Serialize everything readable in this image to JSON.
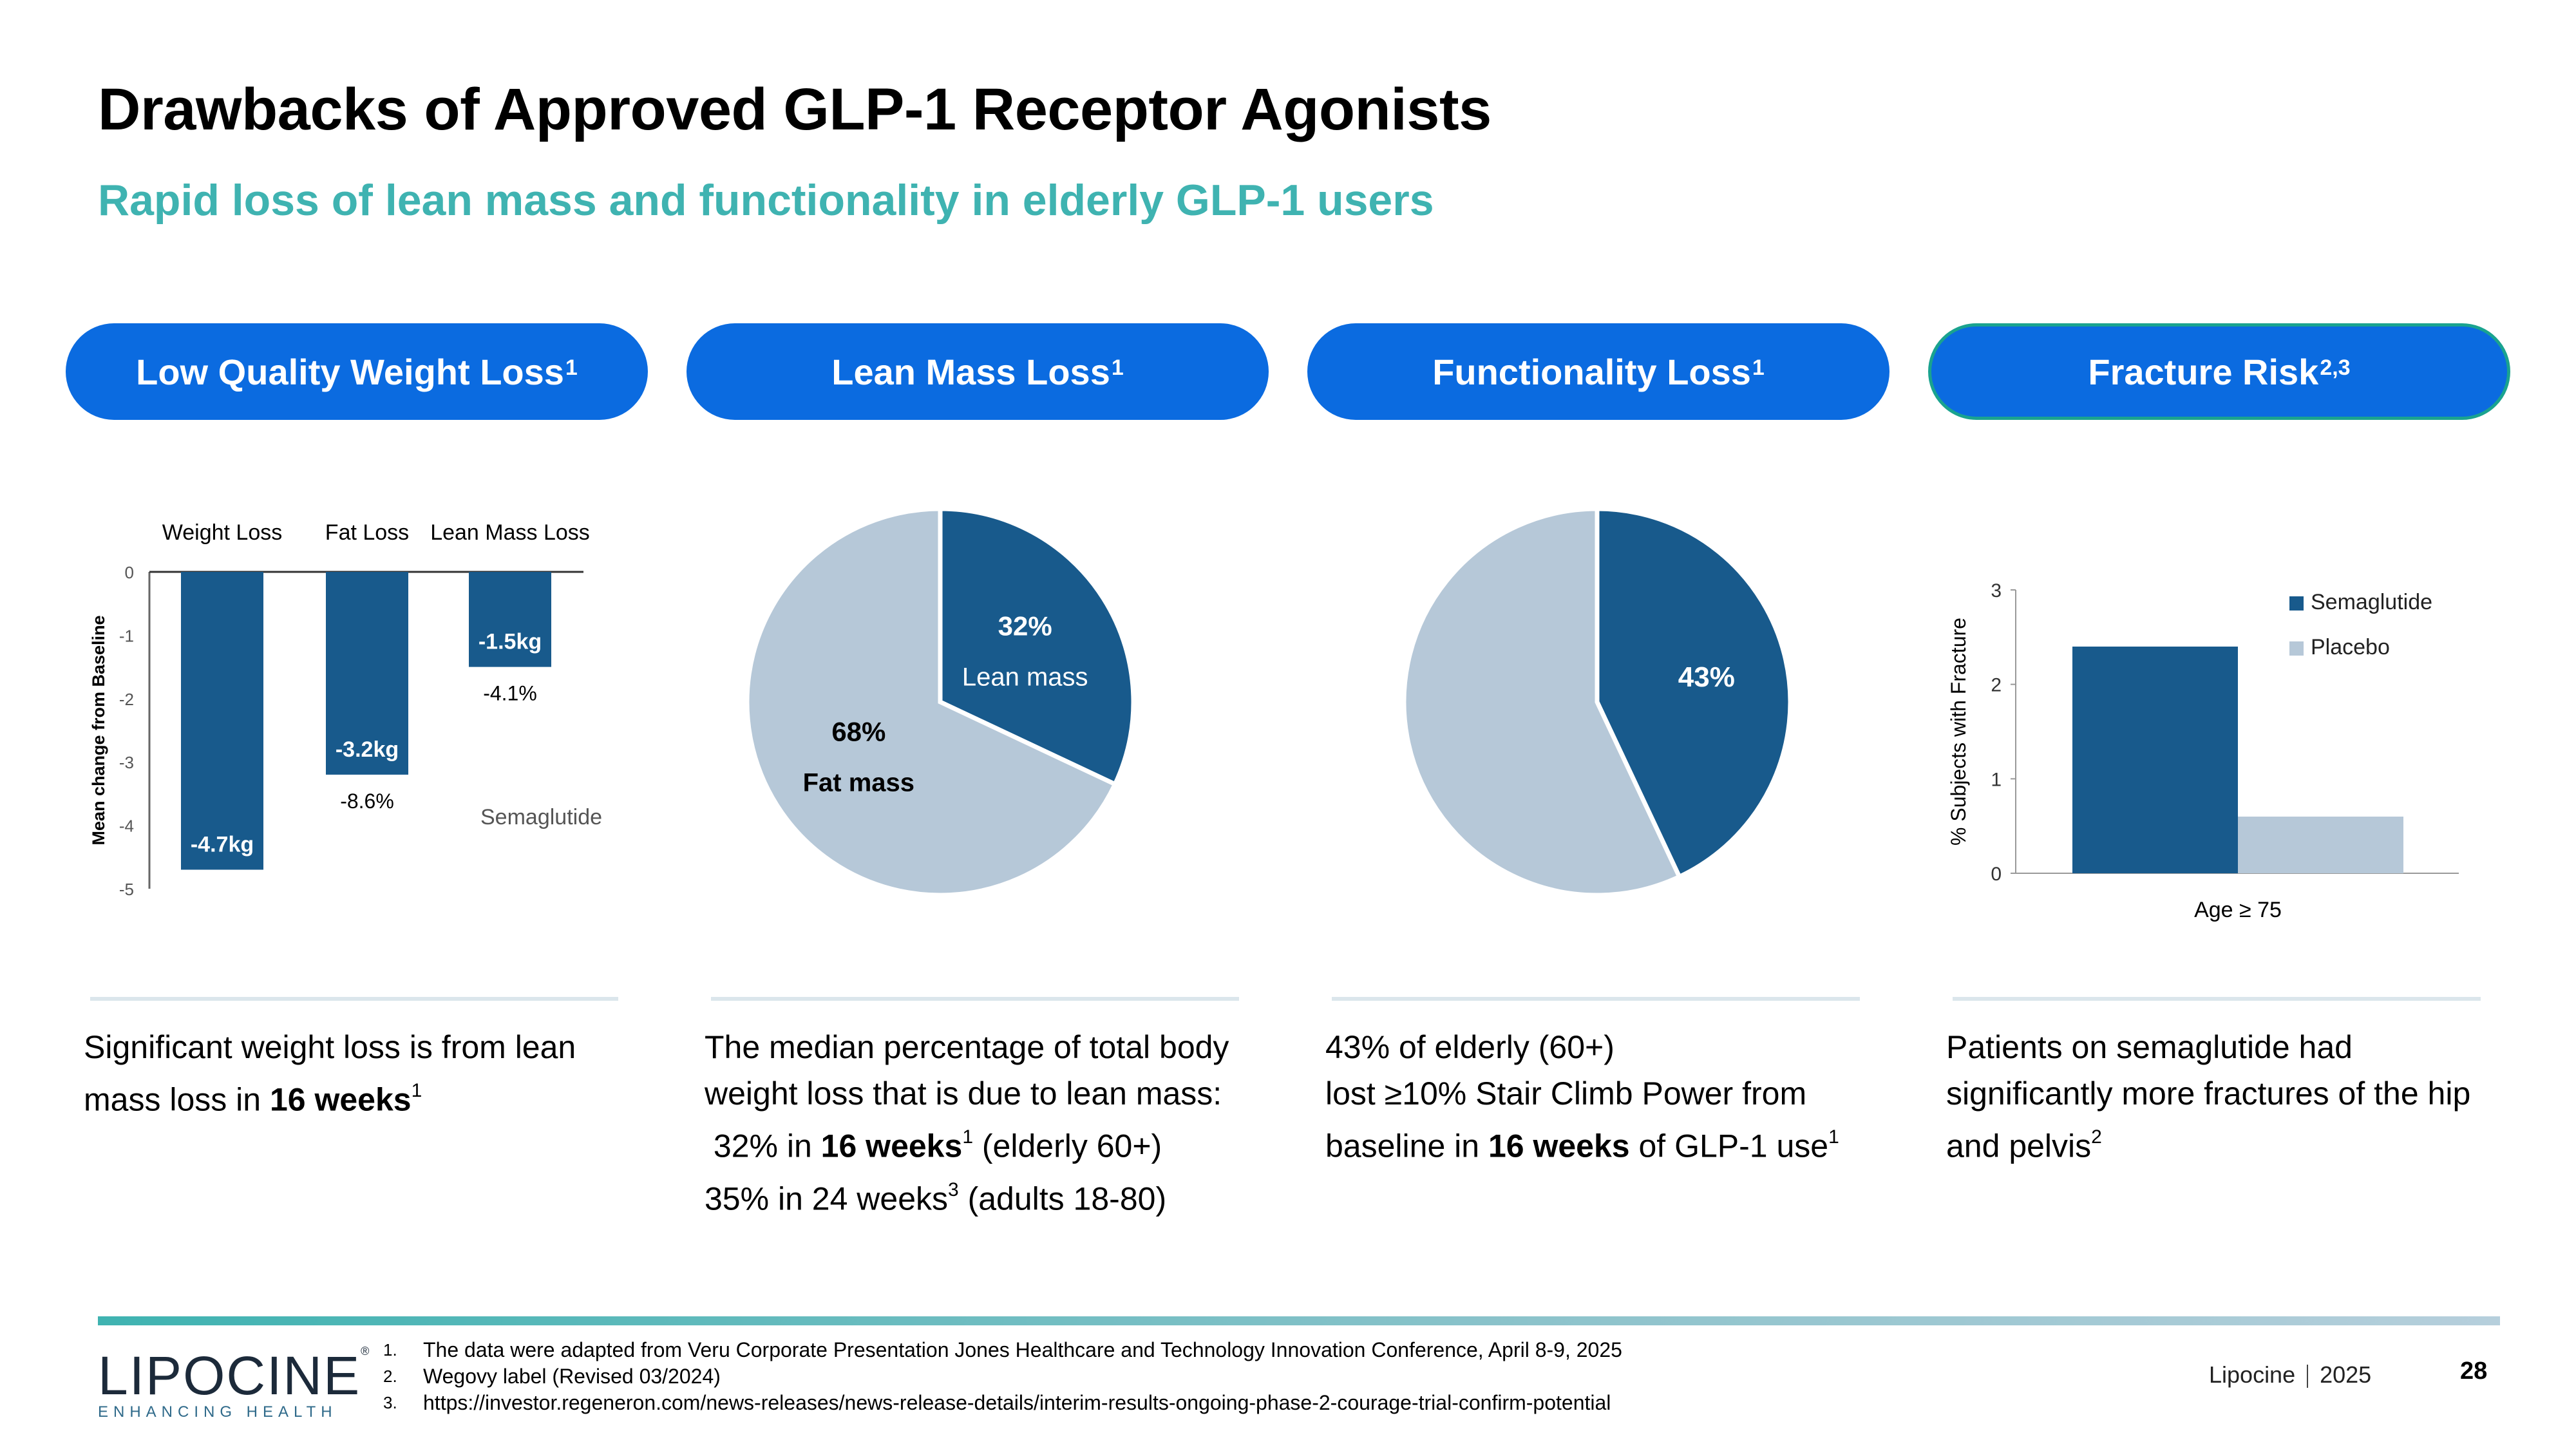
{
  "title": "Drawbacks of Approved GLP-1 Receptor Agonists",
  "subtitle": "Rapid loss of lean mass and functionality in elderly GLP-1 users",
  "colors": {
    "accent_blue": "#0b6be0",
    "dark_blue": "#185a8c",
    "light_blue": "#b6c8d8",
    "teal": "#3fb3b1"
  },
  "pills": [
    {
      "label": "Low Quality Weight Loss",
      "sup": "1"
    },
    {
      "label": "Lean Mass Loss",
      "sup": "1"
    },
    {
      "label": "Functionality Loss",
      "sup": "1"
    },
    {
      "label": "Fracture Risk",
      "sup": "2,3"
    }
  ],
  "chart_data": [
    {
      "type": "bar",
      "categories": [
        "Weight Loss",
        "Fat Loss",
        "Lean Mass Loss"
      ],
      "values": [
        -4.7,
        -3.2,
        -1.5
      ],
      "value_labels": [
        "-4.7kg",
        "-3.2kg",
        "-1.5kg"
      ],
      "pct_labels": [
        "",
        "-8.6%",
        "-4.1%"
      ],
      "annotation": "Semaglutide",
      "ylabel": "Mean change from Baseline",
      "ylim": [
        -5,
        0
      ],
      "yticks": [
        "0",
        "-1",
        "-2",
        "-3",
        "-4",
        "-5"
      ]
    },
    {
      "type": "pie",
      "slices": [
        {
          "label": "Lean mass",
          "pct_label": "32%",
          "value": 32
        },
        {
          "label": "Fat mass",
          "pct_label": "68%",
          "value": 68
        }
      ]
    },
    {
      "type": "pie",
      "slices": [
        {
          "label": "",
          "pct_label": "43%",
          "value": 43
        },
        {
          "label": "",
          "pct_label": "",
          "value": 57
        }
      ]
    },
    {
      "type": "bar",
      "categories": [
        "Age ≥ 75"
      ],
      "series": [
        {
          "name": "Semaglutide",
          "values": [
            2.4
          ]
        },
        {
          "name": "Placebo",
          "values": [
            0.6
          ]
        }
      ],
      "ylabel": "% Subjects with Fracture",
      "ylim": [
        0,
        3
      ],
      "yticks": [
        "0",
        "1",
        "2",
        "3"
      ]
    }
  ],
  "descriptions": {
    "col1": {
      "l1": "Significant weight loss is from lean",
      "l2a": "mass loss in ",
      "l2b": "16 weeks",
      "l2sup": "1"
    },
    "col2": {
      "l1": "The median percentage of total body",
      "l2": "weight loss that is due to lean mass:",
      "l3a": " 32% in ",
      "l3b": "16 weeks",
      "l3sup": "1",
      "l3c": " (elderly 60+)",
      "l4a": "35% in 24 weeks",
      "l4sup": "3",
      "l4c": " (adults 18-80)"
    },
    "col3": {
      "l1": "43% of elderly (60+)",
      "l2": "lost ≥10% Stair Climb Power from",
      "l3a": "baseline in ",
      "l3b": "16 weeks",
      "l3c": " of GLP-1 use",
      "l3sup": "1"
    },
    "col4": {
      "l1": "Patients on semaglutide had",
      "l2": "significantly more fractures of the hip",
      "l3a": "and pelvis",
      "l3sup": "2"
    }
  },
  "footer": {
    "logo": "LIPOCINE",
    "logo_reg": "®",
    "logo_tagline": "ENHANCING HEALTH",
    "references": [
      {
        "num": "1.",
        "text": "The data were adapted from Veru Corporate Presentation Jones Healthcare and Technology Innovation Conference, April 8-9, 2025"
      },
      {
        "num": "2.",
        "text": "Wegovy label (Revised 03/2024)"
      },
      {
        "num": "3.",
        "text": "https://investor.regeneron.com/news-releases/news-release-details/interim-results-ongoing-phase-2-courage-trial-confirm-potential"
      }
    ],
    "company": "Lipocine",
    "year": "2025",
    "page_number": "28"
  }
}
